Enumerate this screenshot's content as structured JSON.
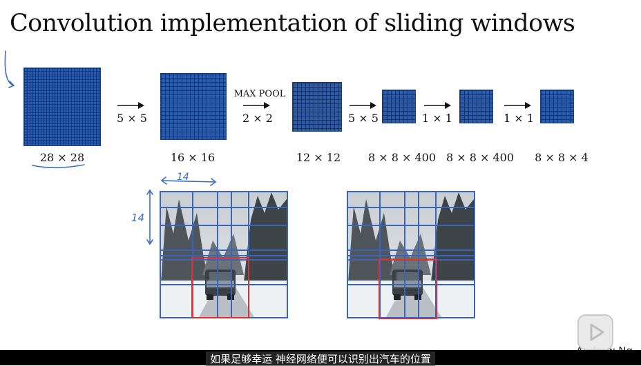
{
  "slide": {
    "title": "Convolution implementation of sliding windows",
    "author": "Andrew Ng",
    "subtitle": "如果足够幸运 神经网络便可以识别出汽车的位置"
  },
  "pipeline": {
    "sizes": [
      "28 × 28",
      "16 × 16",
      "12 × 12",
      "8 × 8 × 400",
      "8 × 8 × 400",
      "8 × 8 × 4"
    ],
    "ops": {
      "conv1": "5 × 5",
      "pool_name": "MAX POOL",
      "pool_size": "2 × 2",
      "conv2": "5 × 5",
      "fc1": "1 × 1",
      "fc2": "1 × 1"
    }
  },
  "annotations": {
    "width_note": "14",
    "height_note": "14"
  },
  "colors": {
    "grid_fill": "#2a5aa8",
    "window_border": "#e03030",
    "pen": "#3b6cc0"
  }
}
